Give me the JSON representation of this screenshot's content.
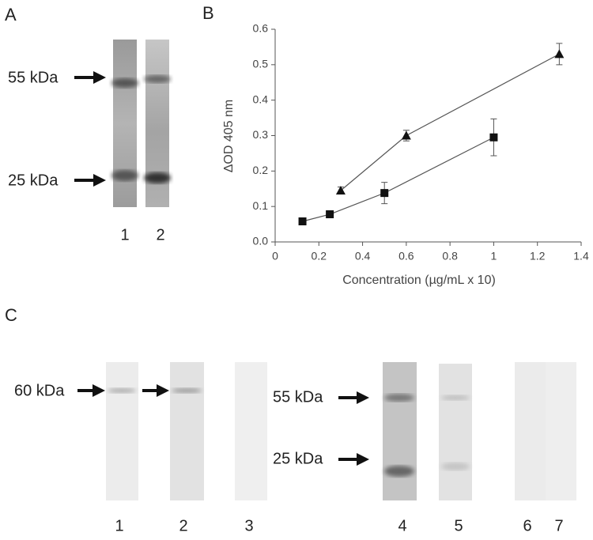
{
  "panel_labels": [
    "A",
    "B",
    "C"
  ],
  "blot_a": {
    "markers": [
      "55 kDa",
      "25 kDa"
    ],
    "lanes": [
      "1",
      "2"
    ]
  },
  "blot_c": {
    "markers": [
      "60 kDa",
      "55 kDa",
      "25 kDa"
    ],
    "lanes": [
      "1",
      "2",
      "3",
      "4",
      "5",
      "6",
      "7"
    ]
  },
  "chart_data": {
    "type": "scatter-line",
    "x_label": "Concentration (µg/mL x 10)",
    "y_label": "ΔOD 405 nm",
    "xlim": [
      0,
      1.4
    ],
    "xticks": [
      0,
      0.2,
      0.4,
      0.6,
      0.8,
      1,
      1.2,
      1.4
    ],
    "ylim": [
      0,
      0.6
    ],
    "yticks": [
      {
        "value": 0,
        "label": "0.0"
      },
      0.1,
      0.2,
      0.3,
      0.4,
      0.5,
      0.6
    ],
    "grid": false,
    "series": [
      {
        "marker": "triangle",
        "color": "#111111",
        "x": [
          0.3,
          0.6,
          1.3
        ],
        "values": [
          0.145,
          0.3,
          0.53
        ],
        "errors": [
          0.01,
          0.015,
          0.03
        ]
      },
      {
        "marker": "square",
        "color": "#111111",
        "x": [
          0.125,
          0.25,
          0.5,
          1.0
        ],
        "values": [
          0.058,
          0.078,
          0.138,
          0.295
        ],
        "errors": [
          0.005,
          0.01,
          0.03,
          0.052
        ]
      }
    ]
  }
}
